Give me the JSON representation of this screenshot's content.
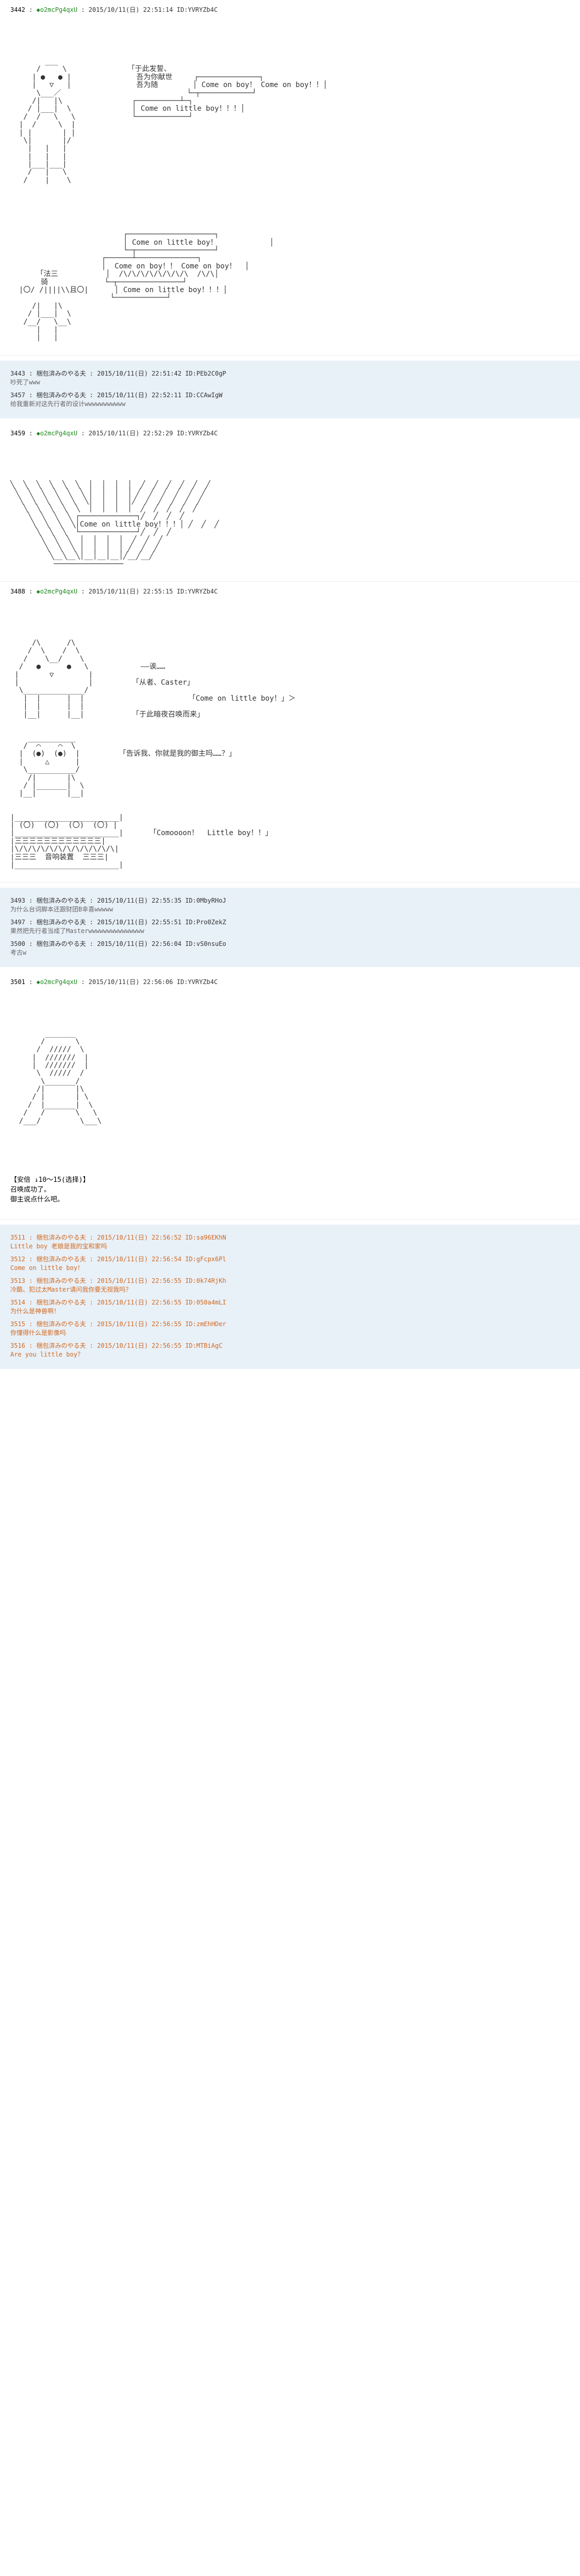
{
  "posts": [
    {
      "num": "3442",
      "trip": "◆o2mcPg4qxU",
      "date": "2015/10/11(日) 22:51:14",
      "id": "ID:YVRYZb4C",
      "aa_blocks": [
        {
          "lines": [
            "        ___",
            "      /     \\              「于此发誓、",
            "     | ●   ● |               吾为你献世     ┌──────────────┐",
            "     |   ▽   |               吾为随        │ Come on boy！ Come on boy！！│",
            "      \\___／                             └─┬────────────┘",
            "     /|   |\\                ┌──────────┴─┐",
            "    / |___|  \\              │ Come on little boy！！！│",
            "   /  /   \\   \\             └────────────┘",
            "  |  /     \\  |",
            "  | |       | |",
            "   \\|       |/",
            "    |   |   |",
            "    |   |   |",
            "    |___|___|",
            "    /   |   \\",
            "   /    |    \\"
          ]
        },
        {
          "lines": [
            "                          ┌────────────────────┐",
            "                          │ Come on little boy！            │",
            "                          └─┬──────────────────┘",
            "                     ┌──────┴──────────────┐",
            "                     │  Come on boy！！ Come on boy！  │",
            "      「法三           │  /\\/\\/\\/\\/\\/\\/\\/\\  /\\/\\│",
            "       骑             └─┬───────────────┘",
            "  |〇/ /||||\\\\且〇|      │ Come on little boy！！！│",
            "                       └────────────┘",
            "     /|   |\\",
            "    / |___|  \\",
            "   /__/   \\__\\",
            "      |   |",
            "      |   |"
          ]
        }
      ]
    },
    {
      "num": "3459",
      "trip": "◆o2mcPg4qxU",
      "date": "2015/10/11(日) 22:52:29",
      "id": "ID:YVRYZb4C",
      "aa_blocks": [
        {
          "lines": [
            "╲  ╲  ╲  ╲  ╲  ╲  │  │  │  │  ╱  ╱  ╱  ╱  ╱  ╱",
            " ╲  ╲  ╲  ╲  ╲  ╲ │  │  │  │ ╱  ╱  ╱  ╱  ╱  ╱",
            "  ╲  ╲  ╲  ╲  ╲  ╲│  │  │  │╱  ╱  ╱  ╱  ╱  ╱",
            "   ╲  ╲  ╲  ╲  ╲  │  │  │  │  ╱  ╱  ╱  ╱  ╱",
            "    ╲  ╲  ╲  ╲ ┌─────────────┐╱  ╱  ╱  ╱",
            "     ╲  ╲  ╲  ╲│Come on little boy！！！│ ╱  ╱  ╱",
            "      ╲  ╲  ╲  └─────────────┘╱  ╱  ╱",
            "       ╲  ╲  ╲  │  │  │  │  ╱  ╱  ╱",
            "        ╲  ╲  ╲ │  │  │  │ ╱  ╱  ╱",
            "         ╲__╲__╲│__│__│__│╱__╱__╱",
            "          ────────────────"
          ]
        }
      ]
    },
    {
      "num": "3488",
      "trip": "◆o2mcPg4qxU",
      "date": "2015/10/11(日) 22:55:15",
      "id": "ID:YVRYZb4C",
      "aa_blocks": [
        {
          "lines": [
            "     /\\      /\\",
            "    /  \\    /  \\",
            "   /    \\__/    \\",
            "  /   ●      ●   \\            ――诶……",
            " |       ▽        |",
            " |                |         「从者、Caster」",
            "  \\______________/",
            "   |  |      |  |                        「Come on little boy！」＞",
            "   |  |      |  |",
            "   |__|      |__|           「于此暗夜召唤而来」",
            "",
            "",
            "    ___________",
            "   /  ⌒    ⌒  \\",
            "  |  (●)  (●)  |         「告诉我、你就是我的御主吗……？」",
            "  |     △      |",
            "   \\___________/",
            "    /|       |\\",
            "   / |_______|  \\",
            "  |__|       |__|",
            "",
            "",
            "|________________________|",
            "| (〇)  (〇)  (〇)  (〇) |",
            "|________________________|      「Comoooon！  Little boy！！」",
            "|三三三三三三三三三三三三|",
            "|\\/\\/\\/\\/\\/\\/\\/\\/\\/\\/\\/\\|",
            "|三三三  音响装置  三三三|",
            "|________________________|"
          ]
        }
      ]
    },
    {
      "num": "3501",
      "trip": "◆o2mcPg4qxU",
      "date": "2015/10/11(日) 22:56:06",
      "id": "ID:YVRYZb4C",
      "aa_blocks": [
        {
          "lines": [
            "        _______",
            "       /       \\",
            "      /  /////  \\",
            "     |  ///////  |",
            "     |  ///////  |",
            "      \\  /////  /",
            "       \\_______/",
            "      /|       |\\",
            "     / |       | \\",
            "    /  |_______|  \\",
            "   /   /       \\   \\",
            "  /___/         \\___\\"
          ]
        }
      ],
      "choice": {
        "header": "【安倍  ↓10～15(选择)】",
        "lines": [
          "召唤成功了。",
          "御主说点什么吧。"
        ]
      }
    }
  ],
  "reply_blocks": [
    {
      "after_post": 0,
      "replies": [
        {
          "num": "3443",
          "name": "梱包済みのやる夫",
          "date": "2015/10/11(日) 22:51:42",
          "id": "ID:PEb2C0gP",
          "text": "吵死了www"
        },
        {
          "num": "3457",
          "name": "梱包済みのやる夫",
          "date": "2015/10/11(日) 22:52:11",
          "id": "ID:CCAwIgW",
          "text": "给我重新对这先行者的设计wwwwwwwwwww"
        }
      ]
    },
    {
      "after_post": 2,
      "replies": [
        {
          "num": "3493",
          "name": "梱包済みのやる夫",
          "date": "2015/10/11(日) 22:55:35",
          "id": "ID:0MbyRHoJ",
          "text": "为什么台词脚本还跟财团B幸喜wwwww"
        },
        {
          "num": "3497",
          "name": "梱包済みのやる夫",
          "date": "2015/10/11(日) 22:55:51",
          "id": "ID:Pro0ZekZ",
          "text": "果然把先行者当成了Masterwwwwwwwwwwwwwww"
        },
        {
          "num": "3500",
          "name": "梱包済みのやる夫",
          "date": "2015/10/11(日) 22:56:04",
          "id": "ID:vS0nsuEo",
          "text": "考古w"
        }
      ]
    },
    {
      "after_post": 3,
      "orange": true,
      "replies": [
        {
          "num": "3511",
          "name": "梱包済みのやる夫",
          "date": "2015/10/11(日) 22:56:52",
          "id": "ID:sa96EKhN",
          "text": "Little boy\n老娘是我的宝和家吗"
        },
        {
          "num": "3512",
          "name": "梱包済みのやる夫",
          "date": "2015/10/11(日) 22:56:54",
          "id": "ID:gFcpx6Pl",
          "text": "Come on little boy！"
        },
        {
          "num": "3513",
          "name": "梱包済みのやる夫",
          "date": "2015/10/11(日) 22:56:55",
          "id": "ID:0k74RjKh",
          "text": "冷酷、犯过太Master请问我你要无视我吗？"
        },
        {
          "num": "3514",
          "name": "梱包済みのやる夫",
          "date": "2015/10/11(日) 22:56:55",
          "id": "ID:050a4mLI",
          "text": "为什么是神兽啊！"
        },
        {
          "num": "3515",
          "name": "梱包済みのやる夫",
          "date": "2015/10/11(日) 22:56:55",
          "id": "ID:zmEhHDer",
          "text": "你懂得什么是影像吗"
        },
        {
          "num": "3516",
          "name": "梱包済みのやる夫",
          "date": "2015/10/11(日) 22:56:55",
          "id": "ID:MTBiAgC",
          "text": "Are you little boy？"
        }
      ]
    }
  ]
}
